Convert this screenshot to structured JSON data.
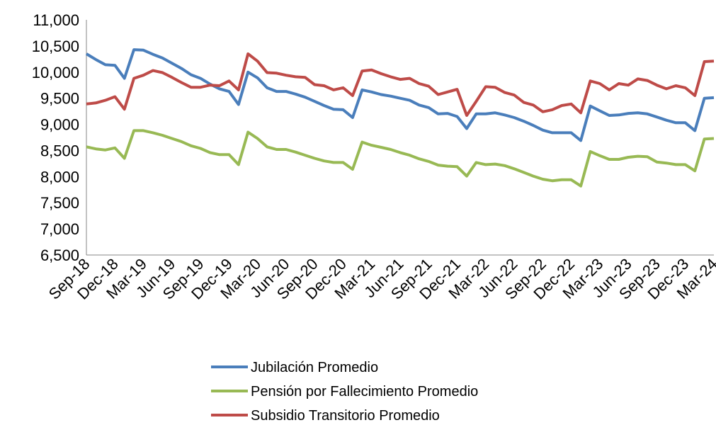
{
  "chart_data": {
    "type": "line",
    "categories": [
      "Sep-18",
      null,
      null,
      "Dec-18",
      null,
      null,
      "Mar-19",
      null,
      null,
      "Jun-19",
      null,
      null,
      "Sep-19",
      null,
      null,
      "Dec-19",
      null,
      null,
      "Mar-20",
      null,
      null,
      "Jun-20",
      null,
      null,
      "Sep-20",
      null,
      null,
      "Dec-20",
      null,
      null,
      "Mar-21",
      null,
      null,
      "Jun-21",
      null,
      null,
      "Sep-21",
      null,
      null,
      "Dec-21",
      null,
      null,
      "Mar-22",
      null,
      null,
      "Jun-22",
      null,
      null,
      "Sep-22",
      null,
      null,
      "Dec-22",
      null,
      null,
      "Mar-23",
      null,
      null,
      "Jun-23",
      null,
      null,
      "Sep-23",
      null,
      null,
      "Dec-23",
      null,
      null,
      "Mar-24"
    ],
    "series": [
      {
        "name": "Jubilación Promedio",
        "color": "#4a7ebb",
        "values": [
          10350,
          10240,
          10140,
          10130,
          9880,
          10430,
          10420,
          10340,
          10270,
          10170,
          10070,
          9950,
          9880,
          9770,
          9680,
          9630,
          9380,
          10000,
          9890,
          9700,
          9630,
          9630,
          9580,
          9520,
          9440,
          9360,
          9290,
          9280,
          9130,
          9660,
          9620,
          9570,
          9540,
          9500,
          9460,
          9370,
          9320,
          9200,
          9210,
          9150,
          8920,
          9200,
          9200,
          9220,
          9180,
          9130,
          9060,
          8980,
          8890,
          8840,
          8840,
          8840,
          8690,
          9350,
          9260,
          9170,
          9180,
          9210,
          9220,
          9200,
          9140,
          9080,
          9030,
          9030,
          8880,
          9500,
          9510
        ]
      },
      {
        "name": "Pensión por Fallecimiento Promedio",
        "color": "#98b954",
        "values": [
          8570,
          8530,
          8510,
          8550,
          8350,
          8880,
          8880,
          8840,
          8790,
          8730,
          8670,
          8590,
          8540,
          8460,
          8420,
          8420,
          8230,
          8850,
          8730,
          8570,
          8520,
          8520,
          8470,
          8410,
          8350,
          8300,
          8270,
          8270,
          8140,
          8660,
          8600,
          8560,
          8520,
          8460,
          8410,
          8340,
          8290,
          8220,
          8200,
          8190,
          8010,
          8270,
          8230,
          8240,
          8210,
          8150,
          8080,
          8010,
          7950,
          7920,
          7940,
          7940,
          7820,
          8480,
          8400,
          8330,
          8330,
          8370,
          8390,
          8380,
          8280,
          8260,
          8230,
          8230,
          8110,
          8720,
          8730
        ]
      },
      {
        "name": "Subsidio Transitorio Promedio",
        "color": "#be4b48",
        "values": [
          9390,
          9410,
          9460,
          9530,
          9290,
          9880,
          9940,
          10030,
          9990,
          9900,
          9800,
          9710,
          9710,
          9750,
          9740,
          9830,
          9660,
          10350,
          10210,
          9990,
          9980,
          9940,
          9910,
          9900,
          9760,
          9740,
          9660,
          9700,
          9550,
          10020,
          10040,
          9970,
          9910,
          9860,
          9880,
          9780,
          9730,
          9570,
          9620,
          9670,
          9170,
          9440,
          9720,
          9710,
          9610,
          9560,
          9420,
          9370,
          9240,
          9280,
          9360,
          9390,
          9220,
          9830,
          9780,
          9660,
          9780,
          9750,
          9870,
          9840,
          9750,
          9680,
          9740,
          9700,
          9550,
          10200,
          10210
        ]
      }
    ],
    "ylim": [
      6500,
      11000
    ],
    "yticks": [
      {
        "value": 6500,
        "label": "6,500"
      },
      {
        "value": 7000,
        "label": "7,000"
      },
      {
        "value": 7500,
        "label": "7,500"
      },
      {
        "value": 8000,
        "label": "8,000"
      },
      {
        "value": 8500,
        "label": "8,500"
      },
      {
        "value": 9000,
        "label": "9,000"
      },
      {
        "value": 9500,
        "label": "9,500"
      },
      {
        "value": 10000,
        "label": "10,000"
      },
      {
        "value": 10500,
        "label": "10,500"
      },
      {
        "value": 11000,
        "label": "11,000"
      }
    ],
    "grid": false,
    "legend": "bottom"
  }
}
